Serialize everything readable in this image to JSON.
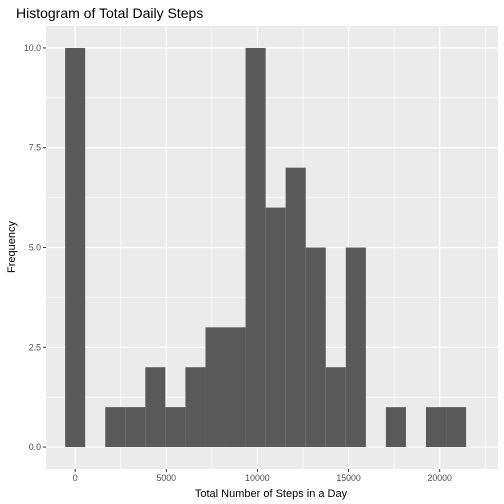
{
  "chart_data": {
    "type": "bar",
    "title": "Histogram of Total Daily Steps",
    "xlabel": "Total Number of Steps in a Day",
    "ylabel": "Frequency",
    "x_ticks": [
      "0",
      "5000",
      "10000",
      "15000",
      "20000"
    ],
    "y_ticks": [
      "0.0",
      "2.5",
      "5.0",
      "7.5",
      "10.0"
    ],
    "x_tick_values": [
      0,
      5000,
      10000,
      15000,
      20000
    ],
    "y_tick_values": [
      0,
      2.5,
      5,
      7.5,
      10
    ],
    "xlim": [
      -1600,
      23200
    ],
    "ylim": [
      -0.55,
      10.55
    ],
    "bin_width": 1100,
    "bins": [
      {
        "x": 0,
        "count": 10
      },
      {
        "x": 1100,
        "count": 0
      },
      {
        "x": 2200,
        "count": 1
      },
      {
        "x": 3300,
        "count": 1
      },
      {
        "x": 4400,
        "count": 2
      },
      {
        "x": 5500,
        "count": 1
      },
      {
        "x": 6600,
        "count": 2
      },
      {
        "x": 7700,
        "count": 3
      },
      {
        "x": 8800,
        "count": 3
      },
      {
        "x": 9900,
        "count": 10
      },
      {
        "x": 11000,
        "count": 6
      },
      {
        "x": 12100,
        "count": 7
      },
      {
        "x": 13200,
        "count": 5
      },
      {
        "x": 14300,
        "count": 2
      },
      {
        "x": 15400,
        "count": 5
      },
      {
        "x": 16500,
        "count": 0
      },
      {
        "x": 17600,
        "count": 1
      },
      {
        "x": 18700,
        "count": 0
      },
      {
        "x": 19800,
        "count": 1
      },
      {
        "x": 20900,
        "count": 1
      }
    ],
    "grid": true,
    "legend": "none",
    "bar_color": "#595959",
    "panel_background": "#ebebeb",
    "grid_color": "#ffffff"
  }
}
